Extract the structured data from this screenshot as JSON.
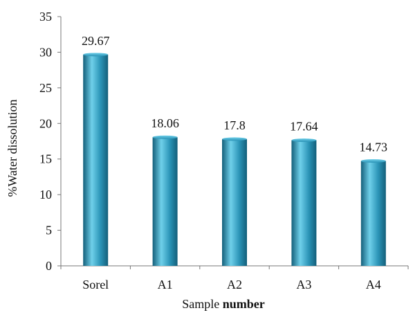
{
  "chart_data": {
    "type": "bar",
    "categories": [
      "Sorel",
      "A1",
      "A2",
      "A3",
      "A4"
    ],
    "values": [
      29.67,
      18.06,
      17.8,
      17.64,
      14.73
    ],
    "value_labels": [
      "29.67",
      "18.06",
      "17.8",
      "17.64",
      "14.73"
    ],
    "title": "",
    "xlabel": "Sample",
    "xlabel_bold": "number",
    "ylabel": "%Water dissolution",
    "ylim": [
      0,
      35
    ],
    "yticks": [
      "0",
      "5",
      "10",
      "15",
      "20",
      "25",
      "30",
      "35"
    ],
    "grid": false,
    "legend": "none",
    "bar_color": "#2a93b6",
    "bar_color_light": "#6fd0ea",
    "bar_color_dark": "#145f7a"
  }
}
